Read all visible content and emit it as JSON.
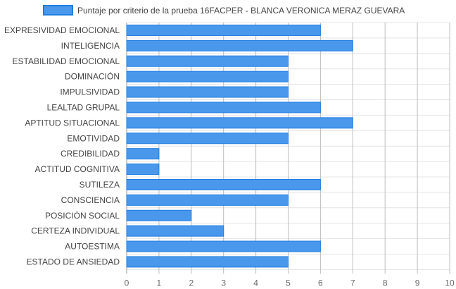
{
  "chart_data": {
    "type": "bar",
    "orientation": "horizontal",
    "categories": [
      "EXPRESIVIDAD EMOCIONAL",
      "INTELIGENCIA",
      "ESTABILIDAD EMOCIONAL",
      "DOMINACIÓN",
      "IMPULSIVIDAD",
      "LEALTAD GRUPAL",
      "APTITUD SITUACIONAL",
      "EMOTIVIDAD",
      "CREDIBILIDAD",
      "ACTITUD COGNITIVA",
      "SUTILEZA",
      "CONSCIENCIA",
      "POSICIÓN SOCIAL",
      "CERTEZA INDIVIDUAL",
      "AUTOESTIMA",
      "ESTADO DE ANSIEDAD"
    ],
    "series": [
      {
        "name": "Puntaje por criterio de la prueba 16FACPER - BLANCA VERONICA MERAZ GUEVARA",
        "values": [
          6,
          7,
          5,
          5,
          5,
          6,
          7,
          5,
          1,
          1,
          6,
          5,
          2,
          3,
          6,
          5
        ],
        "color": "#4a98ec",
        "border_color": "#1f7ee0"
      }
    ],
    "xlim": [
      0,
      10
    ],
    "x_ticks": [
      "0",
      "1",
      "2",
      "3",
      "4",
      "5",
      "6",
      "7",
      "8",
      "9",
      "10"
    ],
    "grid": true,
    "legend_position": "top"
  }
}
